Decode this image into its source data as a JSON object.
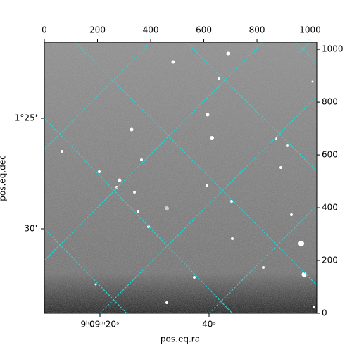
{
  "chart_data": {
    "type": "image",
    "xlabel": "pos.eq.ra",
    "ylabel": "pos.eq.dec",
    "xlim": [
      0,
      1025
    ],
    "ylim": [
      0,
      1027
    ],
    "xticks": [
      0,
      200,
      400,
      600,
      800,
      1000
    ],
    "yticks": [
      0,
      200,
      400,
      600,
      800,
      1000
    ],
    "ra_tick_labels": [
      "9ʰ09ᵐ20ˢ",
      "40ˢ"
    ],
    "dec_tick_labels": [
      "1°25'",
      "30'"
    ],
    "grid_color": "#29d3d3"
  }
}
